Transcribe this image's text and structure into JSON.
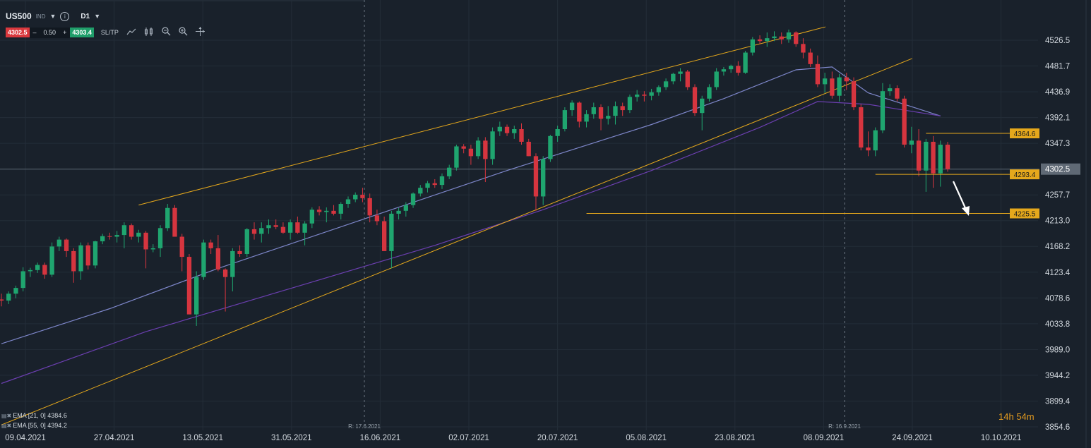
{
  "header": {
    "symbol": "US500",
    "market": "IND",
    "timeframe": "D1",
    "sell_price": "4302.5",
    "quantity": "0.50",
    "buy_price": "4303.4",
    "minus_label": "–",
    "plus_label": "+",
    "sltp_label": "SL/TP"
  },
  "indicators": [
    {
      "label": "EMA [21, 0] 4384.6",
      "color": "#7d86c9"
    },
    {
      "label": "EMA [55, 0] 4394.2",
      "color": "#6b3fb0"
    }
  ],
  "timer": {
    "hours": "14",
    "h": "h",
    "minutes": "54",
    "m": "m"
  },
  "colors": {
    "background": "#19212b",
    "up": "#1fa56f",
    "down": "#d6353f",
    "trendline": "#e5a81c",
    "ema21": "#7d86c9",
    "ema55": "#6b3fb0",
    "price_line": "#5c6672",
    "grid": "#232d38",
    "axis_text": "#d3d9df"
  },
  "icons": [
    "info-icon",
    "line-chart-icon",
    "candles-icon",
    "zoom-out-icon",
    "zoom-in-icon",
    "crosshair-icon"
  ],
  "chart_data": {
    "type": "candlestick",
    "symbol": "US500",
    "y_ticks": [
      4526.5,
      4481.7,
      4436.9,
      4392.1,
      4347.3,
      4302.5,
      4257.7,
      4213.0,
      4168.2,
      4123.4,
      4078.6,
      4033.8,
      3989.0,
      3944.2,
      3899.4,
      3854.6
    ],
    "ylim": [
      3854.6,
      4526.5
    ],
    "x_labels": [
      "09.04.2021",
      "27.04.2021",
      "13.05.2021",
      "31.05.2021",
      "16.06.2021",
      "02.07.2021",
      "20.07.2021",
      "05.08.2021",
      "23.08.2021",
      "08.09.2021",
      "24.09.2021",
      "10.10.2021"
    ],
    "current_price": 4302.5,
    "level_labels": [
      "4364.6",
      "4293.4",
      "4225.5"
    ],
    "session_markers": [
      "R: 17.6.2021",
      "R: 16.9.2021"
    ],
    "candles": [
      {
        "date": "2021-04-06",
        "o": 4076,
        "h": 4086,
        "l": 4064,
        "c": 4074
      },
      {
        "date": "2021-04-07",
        "o": 4074,
        "h": 4090,
        "l": 4068,
        "c": 4086
      },
      {
        "date": "2021-04-08",
        "o": 4086,
        "h": 4100,
        "l": 4078,
        "c": 4096
      },
      {
        "date": "2021-04-09",
        "o": 4096,
        "h": 4132,
        "l": 4090,
        "c": 4125
      },
      {
        "date": "2021-04-12",
        "o": 4125,
        "h": 4131,
        "l": 4115,
        "c": 4127
      },
      {
        "date": "2021-04-13",
        "o": 4127,
        "h": 4140,
        "l": 4122,
        "c": 4136
      },
      {
        "date": "2021-04-14",
        "o": 4136,
        "h": 4140,
        "l": 4112,
        "c": 4119
      },
      {
        "date": "2021-04-15",
        "o": 4119,
        "h": 4175,
        "l": 4115,
        "c": 4168
      },
      {
        "date": "2021-04-16",
        "o": 4168,
        "h": 4185,
        "l": 4160,
        "c": 4180
      },
      {
        "date": "2021-04-19",
        "o": 4180,
        "h": 4182,
        "l": 4150,
        "c": 4160
      },
      {
        "date": "2021-04-20",
        "o": 4160,
        "h": 4165,
        "l": 4105,
        "c": 4125
      },
      {
        "date": "2021-04-21",
        "o": 4125,
        "h": 4175,
        "l": 4110,
        "c": 4170
      },
      {
        "date": "2021-04-22",
        "o": 4170,
        "h": 4175,
        "l": 4128,
        "c": 4135
      },
      {
        "date": "2021-04-23",
        "o": 4135,
        "h": 4178,
        "l": 4130,
        "c": 4177
      },
      {
        "date": "2021-04-26",
        "o": 4177,
        "h": 4190,
        "l": 4172,
        "c": 4186
      },
      {
        "date": "2021-04-27",
        "o": 4186,
        "h": 4192,
        "l": 4180,
        "c": 4185
      },
      {
        "date": "2021-04-28",
        "o": 4185,
        "h": 4195,
        "l": 4175,
        "c": 4188
      },
      {
        "date": "2021-04-29",
        "o": 4188,
        "h": 4210,
        "l": 4165,
        "c": 4205
      },
      {
        "date": "2021-04-30",
        "o": 4205,
        "h": 4208,
        "l": 4180,
        "c": 4185
      },
      {
        "date": "2021-05-03",
        "o": 4185,
        "h": 4197,
        "l": 4175,
        "c": 4192
      },
      {
        "date": "2021-05-04",
        "o": 4192,
        "h": 4195,
        "l": 4130,
        "c": 4163
      },
      {
        "date": "2021-05-05",
        "o": 4163,
        "h": 4172,
        "l": 4158,
        "c": 4165
      },
      {
        "date": "2021-05-06",
        "o": 4165,
        "h": 4205,
        "l": 4150,
        "c": 4200
      },
      {
        "date": "2021-05-07",
        "o": 4200,
        "h": 4242,
        "l": 4195,
        "c": 4235
      },
      {
        "date": "2021-05-10",
        "o": 4235,
        "h": 4240,
        "l": 4185,
        "c": 4185
      },
      {
        "date": "2021-05-11",
        "o": 4185,
        "h": 4190,
        "l": 4125,
        "c": 4150
      },
      {
        "date": "2021-05-12",
        "o": 4150,
        "h": 4155,
        "l": 4050,
        "c": 4050
      },
      {
        "date": "2021-05-13",
        "o": 4050,
        "h": 4125,
        "l": 4030,
        "c": 4115
      },
      {
        "date": "2021-05-14",
        "o": 4115,
        "h": 4180,
        "l": 4110,
        "c": 4175
      },
      {
        "date": "2021-05-17",
        "o": 4175,
        "h": 4180,
        "l": 4155,
        "c": 4165
      },
      {
        "date": "2021-05-18",
        "o": 4165,
        "h": 4188,
        "l": 4125,
        "c": 4128
      },
      {
        "date": "2021-05-19",
        "o": 4128,
        "h": 4130,
        "l": 4055,
        "c": 4115
      },
      {
        "date": "2021-05-20",
        "o": 4115,
        "h": 4165,
        "l": 4090,
        "c": 4160
      },
      {
        "date": "2021-05-21",
        "o": 4160,
        "h": 4170,
        "l": 4150,
        "c": 4155
      },
      {
        "date": "2021-05-24",
        "o": 4155,
        "h": 4200,
        "l": 4150,
        "c": 4198
      },
      {
        "date": "2021-05-25",
        "o": 4198,
        "h": 4210,
        "l": 4180,
        "c": 4190
      },
      {
        "date": "2021-05-26",
        "o": 4190,
        "h": 4210,
        "l": 4175,
        "c": 4200
      },
      {
        "date": "2021-05-27",
        "o": 4200,
        "h": 4215,
        "l": 4190,
        "c": 4205
      },
      {
        "date": "2021-05-28",
        "o": 4205,
        "h": 4215,
        "l": 4198,
        "c": 4202
      },
      {
        "date": "2021-05-31",
        "o": 4202,
        "h": 4210,
        "l": 4190,
        "c": 4192
      },
      {
        "date": "2021-06-01",
        "o": 4192,
        "h": 4215,
        "l": 4180,
        "c": 4210
      },
      {
        "date": "2021-06-02",
        "o": 4210,
        "h": 4220,
        "l": 4190,
        "c": 4192
      },
      {
        "date": "2021-06-03",
        "o": 4192,
        "h": 4212,
        "l": 4170,
        "c": 4208
      },
      {
        "date": "2021-06-04",
        "o": 4208,
        "h": 4236,
        "l": 4200,
        "c": 4232
      },
      {
        "date": "2021-06-07",
        "o": 4232,
        "h": 4238,
        "l": 4222,
        "c": 4228
      },
      {
        "date": "2021-06-08",
        "o": 4228,
        "h": 4236,
        "l": 4210,
        "c": 4230
      },
      {
        "date": "2021-06-09",
        "o": 4230,
        "h": 4240,
        "l": 4222,
        "c": 4225
      },
      {
        "date": "2021-06-10",
        "o": 4225,
        "h": 4245,
        "l": 4215,
        "c": 4242
      },
      {
        "date": "2021-06-11",
        "o": 4242,
        "h": 4255,
        "l": 4235,
        "c": 4250
      },
      {
        "date": "2021-06-14",
        "o": 4250,
        "h": 4262,
        "l": 4245,
        "c": 4258
      },
      {
        "date": "2021-06-15",
        "o": 4258,
        "h": 4270,
        "l": 4245,
        "c": 4252
      },
      {
        "date": "2021-06-16",
        "o": 4252,
        "h": 4260,
        "l": 4210,
        "c": 4222
      },
      {
        "date": "2021-06-17",
        "o": 4222,
        "h": 4232,
        "l": 4205,
        "c": 4212
      },
      {
        "date": "2021-06-18",
        "o": 4212,
        "h": 4220,
        "l": 4160,
        "c": 4160
      },
      {
        "date": "2021-06-21",
        "o": 4160,
        "h": 4230,
        "l": 4130,
        "c": 4225
      },
      {
        "date": "2021-06-22",
        "o": 4225,
        "h": 4235,
        "l": 4215,
        "c": 4230
      },
      {
        "date": "2021-06-23",
        "o": 4230,
        "h": 4245,
        "l": 4220,
        "c": 4240
      },
      {
        "date": "2021-06-24",
        "o": 4240,
        "h": 4262,
        "l": 4235,
        "c": 4260
      },
      {
        "date": "2021-06-25",
        "o": 4260,
        "h": 4275,
        "l": 4255,
        "c": 4270
      },
      {
        "date": "2021-06-28",
        "o": 4270,
        "h": 4282,
        "l": 4262,
        "c": 4278
      },
      {
        "date": "2021-06-29",
        "o": 4278,
        "h": 4285,
        "l": 4270,
        "c": 4275
      },
      {
        "date": "2021-06-30",
        "o": 4275,
        "h": 4295,
        "l": 4268,
        "c": 4290
      },
      {
        "date": "2021-07-01",
        "o": 4290,
        "h": 4310,
        "l": 4285,
        "c": 4305
      },
      {
        "date": "2021-07-02",
        "o": 4305,
        "h": 4345,
        "l": 4300,
        "c": 4342
      },
      {
        "date": "2021-07-05",
        "o": 4342,
        "h": 4346,
        "l": 4330,
        "c": 4338
      },
      {
        "date": "2021-07-06",
        "o": 4338,
        "h": 4345,
        "l": 4310,
        "c": 4325
      },
      {
        "date": "2021-07-07",
        "o": 4325,
        "h": 4358,
        "l": 4320,
        "c": 4352
      },
      {
        "date": "2021-07-08",
        "o": 4352,
        "h": 4358,
        "l": 4280,
        "c": 4320
      },
      {
        "date": "2021-07-09",
        "o": 4320,
        "h": 4375,
        "l": 4310,
        "c": 4368
      },
      {
        "date": "2021-07-12",
        "o": 4368,
        "h": 4385,
        "l": 4360,
        "c": 4376
      },
      {
        "date": "2021-07-13",
        "o": 4376,
        "h": 4380,
        "l": 4360,
        "c": 4365
      },
      {
        "date": "2021-07-14",
        "o": 4365,
        "h": 4378,
        "l": 4355,
        "c": 4372
      },
      {
        "date": "2021-07-15",
        "o": 4372,
        "h": 4382,
        "l": 4345,
        "c": 4350
      },
      {
        "date": "2021-07-16",
        "o": 4350,
        "h": 4355,
        "l": 4325,
        "c": 4325
      },
      {
        "date": "2021-07-19",
        "o": 4325,
        "h": 4330,
        "l": 4230,
        "c": 4255
      },
      {
        "date": "2021-07-20",
        "o": 4255,
        "h": 4325,
        "l": 4240,
        "c": 4320
      },
      {
        "date": "2021-07-21",
        "o": 4320,
        "h": 4362,
        "l": 4315,
        "c": 4360
      },
      {
        "date": "2021-07-22",
        "o": 4360,
        "h": 4378,
        "l": 4350,
        "c": 4372
      },
      {
        "date": "2021-07-23",
        "o": 4372,
        "h": 4410,
        "l": 4368,
        "c": 4405
      },
      {
        "date": "2021-07-26",
        "o": 4405,
        "h": 4422,
        "l": 4395,
        "c": 4418
      },
      {
        "date": "2021-07-27",
        "o": 4418,
        "h": 4420,
        "l": 4375,
        "c": 4385
      },
      {
        "date": "2021-07-28",
        "o": 4385,
        "h": 4405,
        "l": 4375,
        "c": 4398
      },
      {
        "date": "2021-07-29",
        "o": 4398,
        "h": 4418,
        "l": 4390,
        "c": 4410
      },
      {
        "date": "2021-07-30",
        "o": 4410,
        "h": 4415,
        "l": 4370,
        "c": 4390
      },
      {
        "date": "2021-08-02",
        "o": 4390,
        "h": 4412,
        "l": 4380,
        "c": 4395
      },
      {
        "date": "2021-08-03",
        "o": 4395,
        "h": 4420,
        "l": 4380,
        "c": 4412
      },
      {
        "date": "2021-08-04",
        "o": 4412,
        "h": 4418,
        "l": 4395,
        "c": 4405
      },
      {
        "date": "2021-08-05",
        "o": 4405,
        "h": 4432,
        "l": 4400,
        "c": 4428
      },
      {
        "date": "2021-08-06",
        "o": 4428,
        "h": 4440,
        "l": 4420,
        "c": 4432
      },
      {
        "date": "2021-08-09",
        "o": 4432,
        "h": 4438,
        "l": 4420,
        "c": 4430
      },
      {
        "date": "2021-08-10",
        "o": 4430,
        "h": 4442,
        "l": 4422,
        "c": 4436
      },
      {
        "date": "2021-08-11",
        "o": 4436,
        "h": 4448,
        "l": 4430,
        "c": 4445
      },
      {
        "date": "2021-08-12",
        "o": 4445,
        "h": 4460,
        "l": 4440,
        "c": 4455
      },
      {
        "date": "2021-08-13",
        "o": 4455,
        "h": 4470,
        "l": 4450,
        "c": 4468
      },
      {
        "date": "2021-08-16",
        "o": 4468,
        "h": 4478,
        "l": 4455,
        "c": 4472
      },
      {
        "date": "2021-08-17",
        "o": 4472,
        "h": 4475,
        "l": 4440,
        "c": 4445
      },
      {
        "date": "2021-08-18",
        "o": 4445,
        "h": 4450,
        "l": 4395,
        "c": 4400
      },
      {
        "date": "2021-08-19",
        "o": 4400,
        "h": 4430,
        "l": 4370,
        "c": 4425
      },
      {
        "date": "2021-08-20",
        "o": 4425,
        "h": 4450,
        "l": 4420,
        "c": 4445
      },
      {
        "date": "2021-08-23",
        "o": 4445,
        "h": 4478,
        "l": 4440,
        "c": 4472
      },
      {
        "date": "2021-08-24",
        "o": 4472,
        "h": 4480,
        "l": 4465,
        "c": 4476
      },
      {
        "date": "2021-08-25",
        "o": 4476,
        "h": 4484,
        "l": 4470,
        "c": 4482
      },
      {
        "date": "2021-08-26",
        "o": 4482,
        "h": 4490,
        "l": 4465,
        "c": 4470
      },
      {
        "date": "2021-08-27",
        "o": 4470,
        "h": 4508,
        "l": 4468,
        "c": 4505
      },
      {
        "date": "2021-08-30",
        "o": 4505,
        "h": 4532,
        "l": 4500,
        "c": 4528
      },
      {
        "date": "2021-08-31",
        "o": 4528,
        "h": 4535,
        "l": 4520,
        "c": 4525
      },
      {
        "date": "2021-09-01",
        "o": 4525,
        "h": 4540,
        "l": 4515,
        "c": 4530
      },
      {
        "date": "2021-09-02",
        "o": 4530,
        "h": 4542,
        "l": 4525,
        "c": 4533
      },
      {
        "date": "2021-09-03",
        "o": 4533,
        "h": 4540,
        "l": 4520,
        "c": 4528
      },
      {
        "date": "2021-09-06",
        "o": 4528,
        "h": 4545,
        "l": 4522,
        "c": 4540
      },
      {
        "date": "2021-09-07",
        "o": 4540,
        "h": 4542,
        "l": 4515,
        "c": 4520
      },
      {
        "date": "2021-09-08",
        "o": 4520,
        "h": 4530,
        "l": 4495,
        "c": 4505
      },
      {
        "date": "2021-09-09",
        "o": 4505,
        "h": 4512,
        "l": 4480,
        "c": 4485
      },
      {
        "date": "2021-09-10",
        "o": 4485,
        "h": 4500,
        "l": 4445,
        "c": 4450
      },
      {
        "date": "2021-09-13",
        "o": 4450,
        "h": 4470,
        "l": 4435,
        "c": 4460
      },
      {
        "date": "2021-09-14",
        "o": 4460,
        "h": 4472,
        "l": 4425,
        "c": 4430
      },
      {
        "date": "2021-09-15",
        "o": 4430,
        "h": 4468,
        "l": 4420,
        "c": 4462
      },
      {
        "date": "2021-09-16",
        "o": 4462,
        "h": 4470,
        "l": 4440,
        "c": 4455
      },
      {
        "date": "2021-09-17",
        "o": 4455,
        "h": 4462,
        "l": 4405,
        "c": 4410
      },
      {
        "date": "2021-09-20",
        "o": 4410,
        "h": 4415,
        "l": 4335,
        "c": 4340
      },
      {
        "date": "2021-09-21",
        "o": 4340,
        "h": 4368,
        "l": 4325,
        "c": 4335
      },
      {
        "date": "2021-09-22",
        "o": 4335,
        "h": 4375,
        "l": 4325,
        "c": 4370
      },
      {
        "date": "2021-09-23",
        "o": 4370,
        "h": 4452,
        "l": 4365,
        "c": 4438
      },
      {
        "date": "2021-09-24",
        "o": 4438,
        "h": 4450,
        "l": 4430,
        "c": 4443
      },
      {
        "date": "2021-09-27",
        "o": 4443,
        "h": 4448,
        "l": 4420,
        "c": 4425
      },
      {
        "date": "2021-09-28",
        "o": 4425,
        "h": 4430,
        "l": 4340,
        "c": 4345
      },
      {
        "date": "2021-09-29",
        "o": 4345,
        "h": 4376,
        "l": 4330,
        "c": 4352
      },
      {
        "date": "2021-09-30",
        "o": 4352,
        "h": 4372,
        "l": 4290,
        "c": 4300
      },
      {
        "date": "2021-10-01",
        "o": 4300,
        "h": 4355,
        "l": 4263,
        "c": 4350
      },
      {
        "date": "2021-10-04",
        "o": 4350,
        "h": 4360,
        "l": 4270,
        "c": 4295
      },
      {
        "date": "2021-10-05",
        "o": 4295,
        "h": 4352,
        "l": 4272,
        "c": 4345
      },
      {
        "date": "2021-10-06",
        "o": 4345,
        "h": 4350,
        "l": 4298,
        "c": 4302.5
      }
    ],
    "ema21": [
      [
        0,
        3999
      ],
      [
        15,
        4060
      ],
      [
        30,
        4130
      ],
      [
        50,
        4215
      ],
      [
        70,
        4300
      ],
      [
        90,
        4380
      ],
      [
        100,
        4425
      ],
      [
        110,
        4475
      ],
      [
        115,
        4480
      ],
      [
        120,
        4435
      ],
      [
        130,
        4395
      ]
    ],
    "ema55": [
      [
        0,
        3930
      ],
      [
        20,
        4020
      ],
      [
        40,
        4095
      ],
      [
        60,
        4170
      ],
      [
        75,
        4232
      ],
      [
        90,
        4300
      ],
      [
        105,
        4375
      ],
      [
        113,
        4420
      ],
      [
        120,
        4415
      ],
      [
        130,
        4395
      ]
    ],
    "trendlines": [
      {
        "from": [
          19,
          4240
        ],
        "to": [
          109,
          4535
        ]
      },
      {
        "from": [
          0,
          3858
        ],
        "to": [
          121,
          4480
        ]
      },
      {
        "from": [
          129,
          4365
        ],
        "to": [
          131,
          4365
        ]
      }
    ]
  }
}
